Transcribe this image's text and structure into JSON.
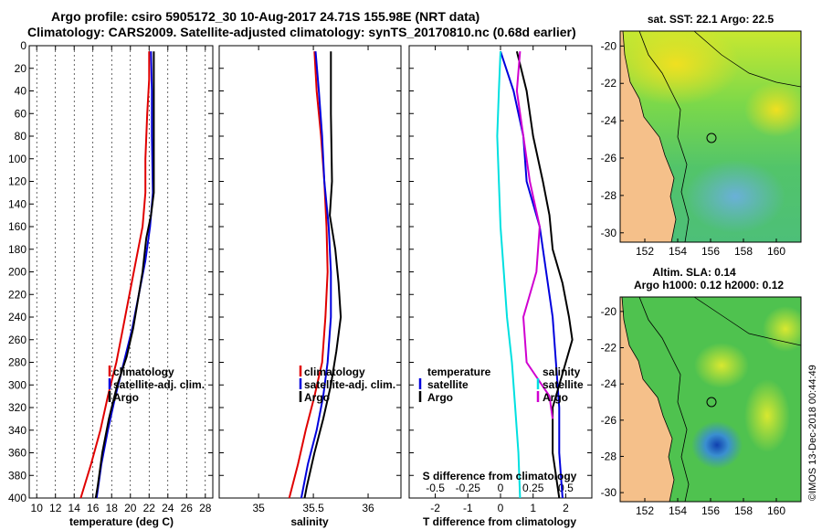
{
  "header": {
    "line1": "Argo profile: csiro 5905172_30 10-Aug-2017 24.71S 155.98E (NRT data)",
    "line2": "Climatology: CARS2009. Satellite-adjusted climatology: synTS_20170810.nc (0.68d earlier)"
  },
  "colors": {
    "climatology": "#e00000",
    "satellite": "#0000dd",
    "argo": "#000000",
    "s_satellite": "#00e0e0",
    "s_argo": "#d000d0",
    "land": "#f5c08a"
  },
  "chart_data": [
    {
      "type": "line",
      "name": "temperature profile",
      "xlabel": "temperature (deg C)",
      "ylabel": "depth (m)",
      "xlim": [
        9.2,
        28.8
      ],
      "ylim": [
        0,
        400
      ],
      "y_inverted": true,
      "xticks": [
        "10",
        "12",
        "14",
        "16",
        "18",
        "20",
        "22",
        "24",
        "26",
        "28"
      ],
      "xtick_values": [
        10,
        12,
        14,
        16,
        18,
        20,
        22,
        24,
        26,
        28
      ],
      "yticks": [
        "0",
        "20",
        "40",
        "60",
        "80",
        "100",
        "120",
        "140",
        "160",
        "180",
        "200",
        "220",
        "240",
        "260",
        "280",
        "300",
        "320",
        "340",
        "360",
        "380",
        "400"
      ],
      "ytick_values": [
        0,
        20,
        40,
        60,
        80,
        100,
        120,
        140,
        160,
        180,
        200,
        220,
        240,
        260,
        280,
        300,
        320,
        340,
        360,
        380,
        400
      ],
      "legend": [
        "climatology",
        "satellite-adj. clim.",
        "Argo"
      ],
      "series": [
        {
          "name": "climatology",
          "color": "#e00000",
          "points": [
            [
              22.0,
              5
            ],
            [
              22.0,
              30
            ],
            [
              21.8,
              60
            ],
            [
              21.6,
              100
            ],
            [
              21.6,
              130
            ],
            [
              21.3,
              160
            ],
            [
              20.6,
              190
            ],
            [
              19.9,
              220
            ],
            [
              19.2,
              250
            ],
            [
              18.5,
              280
            ],
            [
              17.6,
              310
            ],
            [
              16.8,
              340
            ],
            [
              15.8,
              370
            ],
            [
              14.7,
              400
            ]
          ]
        },
        {
          "name": "satellite-adj. clim.",
          "color": "#0000dd",
          "points": [
            [
              22.2,
              5
            ],
            [
              22.3,
              40
            ],
            [
              22.3,
              80
            ],
            [
              22.4,
              130
            ],
            [
              22.1,
              160
            ],
            [
              21.6,
              190
            ],
            [
              20.9,
              220
            ],
            [
              20.2,
              250
            ],
            [
              19.3,
              280
            ],
            [
              18.4,
              310
            ],
            [
              17.6,
              340
            ],
            [
              16.9,
              370
            ],
            [
              16.4,
              400
            ]
          ]
        },
        {
          "name": "Argo",
          "color": "#000000",
          "points": [
            [
              22.5,
              5
            ],
            [
              22.5,
              40
            ],
            [
              22.5,
              80
            ],
            [
              22.5,
              130
            ],
            [
              22.2,
              150
            ],
            [
              21.7,
              170
            ],
            [
              21.3,
              200
            ],
            [
              20.8,
              225
            ],
            [
              20.3,
              250
            ],
            [
              19.6,
              275
            ],
            [
              18.6,
              300
            ],
            [
              17.7,
              330
            ],
            [
              17.0,
              360
            ],
            [
              16.5,
              390
            ],
            [
              16.3,
              400
            ]
          ]
        }
      ]
    },
    {
      "type": "line",
      "name": "salinity profile",
      "xlabel": "salinity",
      "ylabel": "depth (m)",
      "xlim": [
        34.64,
        36.3
      ],
      "ylim": [
        0,
        400
      ],
      "y_inverted": true,
      "xticks": [
        "35",
        "35.5",
        "36"
      ],
      "xtick_values": [
        35,
        35.5,
        36
      ],
      "legend": [
        "climatology",
        "satellite-adj. clim.",
        "Argo"
      ],
      "series": [
        {
          "name": "climatology",
          "color": "#e00000",
          "points": [
            [
              35.51,
              5
            ],
            [
              35.53,
              40
            ],
            [
              35.57,
              80
            ],
            [
              35.6,
              120
            ],
            [
              35.62,
              160
            ],
            [
              35.63,
              200
            ],
            [
              35.61,
              240
            ],
            [
              35.58,
              280
            ],
            [
              35.51,
              310
            ],
            [
              35.43,
              340
            ],
            [
              35.36,
              370
            ],
            [
              35.28,
              400
            ]
          ]
        },
        {
          "name": "satellite-adj. clim.",
          "color": "#0000dd",
          "points": [
            [
              35.52,
              5
            ],
            [
              35.55,
              40
            ],
            [
              35.58,
              80
            ],
            [
              35.6,
              120
            ],
            [
              35.64,
              160
            ],
            [
              35.66,
              200
            ],
            [
              35.66,
              240
            ],
            [
              35.63,
              280
            ],
            [
              35.59,
              310
            ],
            [
              35.53,
              340
            ],
            [
              35.45,
              370
            ],
            [
              35.39,
              400
            ]
          ]
        },
        {
          "name": "Argo",
          "color": "#000000",
          "points": [
            [
              35.66,
              5
            ],
            [
              35.66,
              60
            ],
            [
              35.67,
              120
            ],
            [
              35.65,
              150
            ],
            [
              35.7,
              180
            ],
            [
              35.73,
              210
            ],
            [
              35.75,
              240
            ],
            [
              35.71,
              270
            ],
            [
              35.66,
              300
            ],
            [
              35.59,
              330
            ],
            [
              35.51,
              360
            ],
            [
              35.44,
              390
            ],
            [
              35.42,
              400
            ]
          ]
        }
      ]
    },
    {
      "type": "line",
      "name": "difference from climatology",
      "xlabel": "T difference from climatology",
      "xlabel_top": "S difference from climatology",
      "ylabel": "depth (m)",
      "xlim": [
        -2.8,
        2.8
      ],
      "ylim": [
        0,
        400
      ],
      "y_inverted": true,
      "xticks": [
        "-2",
        "-1",
        "0",
        "1",
        "2"
      ],
      "xtick_values": [
        -2,
        -1,
        0,
        1,
        2
      ],
      "s_xticks": [
        "-0.5",
        "-0.25",
        "0",
        "0.25",
        "0.5"
      ],
      "s_xtick_values": [
        -0.5,
        -0.25,
        0,
        0.25,
        0.5
      ],
      "legend_left_title": "temperature",
      "legend_right_title": "salinity",
      "legend": [
        "satellite",
        "Argo",
        "satellite",
        "Argo"
      ],
      "series": [
        {
          "name": "temperature satellite",
          "color": "#0000dd",
          "points": [
            [
              0.0,
              5
            ],
            [
              0.4,
              40
            ],
            [
              0.7,
              80
            ],
            [
              0.8,
              120
            ],
            [
              1.2,
              160
            ],
            [
              1.4,
              200
            ],
            [
              1.6,
              240
            ],
            [
              1.7,
              280
            ],
            [
              1.8,
              320
            ],
            [
              1.8,
              360
            ],
            [
              1.9,
              400
            ]
          ]
        },
        {
          "name": "temperature Argo",
          "color": "#000000",
          "points": [
            [
              0.5,
              5
            ],
            [
              0.8,
              40
            ],
            [
              1.0,
              80
            ],
            [
              1.3,
              120
            ],
            [
              1.5,
              150
            ],
            [
              1.6,
              180
            ],
            [
              1.9,
              210
            ],
            [
              2.1,
              240
            ],
            [
              2.2,
              260
            ],
            [
              1.9,
              290
            ],
            [
              1.6,
              320
            ],
            [
              1.6,
              360
            ],
            [
              1.8,
              400
            ]
          ]
        },
        {
          "name": "salinity satellite",
          "color": "#00e0e0",
          "points": [
            [
              0.0,
              5
            ],
            [
              -0.05,
              40
            ],
            [
              -0.1,
              80
            ],
            [
              -0.05,
              120
            ],
            [
              0.0,
              160
            ],
            [
              0.1,
              200
            ],
            [
              0.2,
              240
            ],
            [
              0.35,
              280
            ],
            [
              0.45,
              320
            ],
            [
              0.55,
              360
            ],
            [
              0.6,
              400
            ]
          ]
        },
        {
          "name": "salinity Argo",
          "color": "#d000d0",
          "points": [
            [
              0.6,
              5
            ],
            [
              0.5,
              40
            ],
            [
              0.7,
              80
            ],
            [
              0.9,
              120
            ],
            [
              1.2,
              160
            ],
            [
              1.1,
              200
            ],
            [
              0.7,
              240
            ],
            [
              0.8,
              280
            ],
            [
              1.5,
              310
            ],
            [
              1.6,
              330
            ]
          ]
        }
      ]
    },
    {
      "type": "heatmap",
      "name": "SST map",
      "title": "sat. SST: 22.1 Argo: 22.5",
      "xticks": [
        "152",
        "154",
        "156",
        "158",
        "160"
      ],
      "xtick_values": [
        152,
        154,
        156,
        158,
        160
      ],
      "yticks": [
        "-20",
        "-22",
        "-24",
        "-26",
        "-28",
        "-30"
      ],
      "ytick_values": [
        -20,
        -22,
        -24,
        -26,
        -28,
        -30
      ],
      "xlim": [
        150.5,
        161.5
      ],
      "ylim": [
        -30.5,
        -19.2
      ]
    },
    {
      "type": "heatmap",
      "name": "SLA map",
      "title_line1": "Altim. SLA: 0.14",
      "title_line2": "Argo h1000: 0.12 h2000: 0.12",
      "xticks": [
        "152",
        "154",
        "156",
        "158",
        "160"
      ],
      "xtick_values": [
        152,
        154,
        156,
        158,
        160
      ],
      "yticks": [
        "-20",
        "-22",
        "-24",
        "-26",
        "-28",
        "-30"
      ],
      "ytick_values": [
        -20,
        -22,
        -24,
        -26,
        -28,
        -30
      ],
      "xlim": [
        150.5,
        161.5
      ],
      "ylim": [
        -30.5,
        -19.2
      ]
    }
  ],
  "stamp": "©IMOS 13-Dec-2018 00:44:49"
}
